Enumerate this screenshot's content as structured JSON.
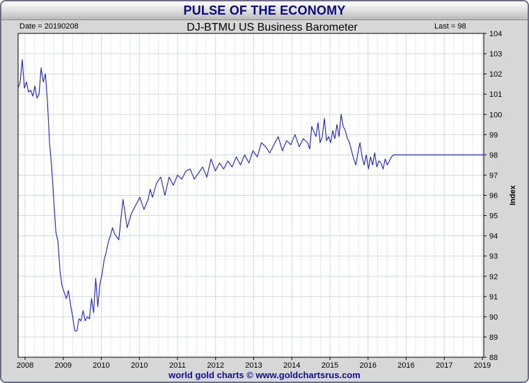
{
  "banner": {
    "title": "PULSE OF THE ECONOMY"
  },
  "header": {
    "date_label": "Date = 20190208",
    "last_label": "Last = 98"
  },
  "footer": {
    "credit": "world gold charts © www.goldchartsrus.com"
  },
  "colors": {
    "line": "#1c1ccc",
    "grid": "#cfd8e0",
    "banner_text": "#0a0a80",
    "footer_text": "#10108c"
  },
  "chart_data": {
    "type": "line",
    "title": "DJ-BTMU US Business Barometer",
    "xlabel": "",
    "ylabel": "Index",
    "ylim": [
      88,
      104
    ],
    "xlim": [
      2007.9,
      2019.0
    ],
    "y_ticks": [
      "88",
      "89",
      "90",
      "91",
      "92",
      "93",
      "94",
      "95",
      "96",
      "97",
      "98",
      "99",
      "100",
      "101",
      "102",
      "103",
      "104"
    ],
    "x_ticks": [
      "2008",
      "2009",
      "2010",
      "2010",
      "2011",
      "2012",
      "2013",
      "2014",
      "2015",
      "2016",
      "2016",
      "2017",
      "2019"
    ],
    "grid": true,
    "series": [
      {
        "x": [
          2007.9,
          2007.95,
          2008.0,
          2008.05,
          2008.1,
          2008.15,
          2008.2,
          2008.25,
          2008.3,
          2008.35,
          2008.4,
          2008.45,
          2008.5,
          2008.55,
          2008.6,
          2008.62,
          2008.65,
          2008.7,
          2008.75,
          2008.8,
          2008.85,
          2008.9,
          2008.95,
          2009.0,
          2009.05,
          2009.1,
          2009.15,
          2009.2,
          2009.25,
          2009.3,
          2009.35,
          2009.4,
          2009.45,
          2009.5,
          2009.55,
          2009.6,
          2009.65,
          2009.7,
          2009.75,
          2009.8,
          2009.85,
          2009.9,
          2009.95,
          2010.0,
          2010.05,
          2010.1,
          2010.15,
          2010.2,
          2010.3,
          2010.4,
          2010.5,
          2010.6,
          2010.7,
          2010.8,
          2010.9,
          2011.0,
          2011.05,
          2011.1,
          2011.2,
          2011.3,
          2011.4,
          2011.5,
          2011.6,
          2011.7,
          2011.8,
          2011.9,
          2012.0,
          2012.1,
          2012.2,
          2012.3,
          2012.4,
          2012.5,
          2012.6,
          2012.7,
          2012.8,
          2012.9,
          2013.0,
          2013.1,
          2013.2,
          2013.3,
          2013.4,
          2013.5,
          2013.6,
          2013.7,
          2013.8,
          2013.9,
          2014.0,
          2014.1,
          2014.2,
          2014.3,
          2014.4,
          2014.5,
          2014.6,
          2014.7,
          2014.8,
          2014.85,
          2014.9,
          2015.0,
          2015.05,
          2015.1,
          2015.15,
          2015.2,
          2015.25,
          2015.3,
          2015.35,
          2015.4,
          2015.45,
          2015.5,
          2015.55,
          2015.6,
          2015.65,
          2015.7,
          2015.75,
          2015.8,
          2015.85,
          2015.9,
          2015.95,
          2016.0,
          2016.05,
          2016.1,
          2016.15,
          2016.2,
          2016.25,
          2016.3,
          2016.35,
          2016.4,
          2016.45,
          2016.5,
          2016.55,
          2016.6,
          2016.65,
          2016.7,
          2016.75,
          2016.8,
          2016.85,
          2016.9,
          2019.0
        ],
        "values": [
          101.3,
          101.6,
          102.7,
          101.3,
          101.6,
          101.1,
          101.2,
          100.9,
          101.4,
          100.8,
          101.0,
          102.3,
          101.6,
          102.0,
          100.6,
          99.8,
          98.6,
          97.4,
          95.8,
          94.2,
          93.7,
          92.2,
          91.5,
          91.2,
          90.9,
          91.3,
          90.6,
          90.0,
          89.3,
          89.3,
          89.9,
          89.8,
          90.3,
          89.8,
          90.0,
          89.9,
          90.9,
          90.2,
          91.9,
          90.5,
          91.6,
          92.1,
          92.8,
          93.2,
          93.7,
          94.0,
          94.4,
          94.1,
          93.8,
          95.8,
          94.4,
          95.1,
          95.5,
          95.9,
          95.3,
          95.8,
          96.3,
          95.9,
          96.6,
          96.9,
          96.0,
          96.9,
          96.5,
          97.0,
          96.8,
          97.2,
          97.3,
          96.8,
          97.1,
          97.4,
          96.9,
          97.8,
          97.2,
          97.6,
          97.3,
          97.7,
          97.4,
          97.9,
          97.5,
          98.0,
          97.6,
          98.2,
          97.9,
          98.6,
          98.4,
          98.1,
          98.5,
          98.9,
          98.2,
          98.7,
          98.5,
          99.0,
          98.4,
          98.8,
          98.6,
          98.3,
          99.4,
          98.9,
          99.6,
          98.6,
          98.9,
          99.8,
          98.7,
          98.9,
          98.6,
          99.2,
          98.8,
          99.5,
          98.9,
          100.0,
          99.4,
          99.2,
          98.8,
          98.6,
          98.2,
          97.8,
          97.5,
          98.1,
          98.6,
          97.9,
          97.5,
          98.0,
          97.3,
          97.9,
          97.5,
          98.1,
          97.4,
          97.7,
          97.6,
          97.3,
          97.8,
          97.5,
          97.7,
          97.9,
          98.0,
          98.0,
          98.0
        ]
      }
    ]
  }
}
